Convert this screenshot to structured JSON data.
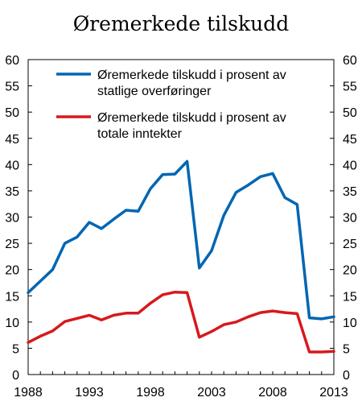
{
  "chart_data": {
    "type": "line",
    "title": "Øremerkede tilskudd",
    "xlabel": "",
    "ylabel": "",
    "xlim": [
      1988,
      2013
    ],
    "ylim": [
      0,
      60
    ],
    "grid": false,
    "legend_position": "top",
    "x_ticks": [
      "1988",
      "1993",
      "1998",
      "2003",
      "2008",
      "2013"
    ],
    "y_ticks": [
      "0",
      "5",
      "10",
      "15",
      "20",
      "25",
      "30",
      "35",
      "40",
      "45",
      "50",
      "55",
      "60"
    ],
    "x": [
      1988,
      1989,
      1990,
      1991,
      1992,
      1993,
      1994,
      1995,
      1996,
      1997,
      1998,
      1999,
      2000,
      2001,
      2002,
      2003,
      2004,
      2005,
      2006,
      2007,
      2008,
      2009,
      2010,
      2011,
      2012,
      2013
    ],
    "series": [
      {
        "name_lines": [
          "Øremerkede tilskudd i prosent av",
          "statlige overføringer"
        ],
        "color": "#0066b3",
        "values": [
          15.6,
          17.8,
          20.0,
          25.0,
          26.2,
          29.0,
          27.8,
          29.6,
          31.3,
          31.1,
          35.4,
          38.1,
          38.2,
          40.6,
          20.3,
          23.6,
          30.3,
          34.7,
          36.1,
          37.7,
          38.3,
          33.7,
          32.4,
          10.8,
          10.6,
          11.0
        ]
      },
      {
        "name_lines": [
          "Øremerkede tilskudd i prosent av",
          "totale inntekter"
        ],
        "color": "#d7191c",
        "values": [
          6.1,
          7.3,
          8.3,
          10.1,
          10.7,
          11.3,
          10.4,
          11.3,
          11.7,
          11.7,
          13.6,
          15.2,
          15.7,
          15.6,
          7.1,
          8.2,
          9.5,
          10.0,
          11.0,
          11.8,
          12.1,
          11.8,
          11.6,
          4.3,
          4.3,
          4.4
        ]
      }
    ]
  }
}
